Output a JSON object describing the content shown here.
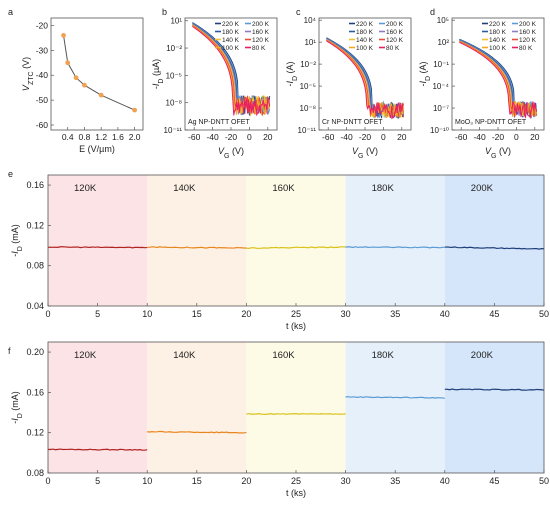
{
  "panel_letters": [
    "a",
    "b",
    "c",
    "d",
    "e",
    "f"
  ],
  "chart_data": [
    {
      "panel": "a",
      "type": "line",
      "xlabel": "E (V/µm)",
      "ylabel": "V_ZTC (V)",
      "xlim": [
        0.0,
        2.2
      ],
      "ylim": [
        -62,
        -17
      ],
      "xticks": [
        0.4,
        0.8,
        1.2,
        1.6,
        2.0
      ],
      "xtick_labels": [
        "0.4",
        "0.8",
        "1.2",
        "1.6",
        "2.0"
      ],
      "yticks": [
        -20,
        -30,
        -40,
        -50,
        -60
      ],
      "ytick_labels": [
        "-20",
        "-30",
        "-40",
        "-50",
        "-60"
      ],
      "x": [
        0.3,
        0.4,
        0.6,
        0.8,
        1.2,
        2.0
      ],
      "y": [
        -24,
        -35,
        -41,
        -44,
        -48,
        -54
      ],
      "line_color": "#555555",
      "marker_color": "#f2a052"
    },
    {
      "panel": "b",
      "type": "line",
      "annotation": "Ag NP-DNTT OFET",
      "xlabel": "V_G (V)",
      "ylabel": "-I_D (µA)",
      "xlim": [
        -70,
        30
      ],
      "ylim_exp": [
        -11,
        1.3
      ],
      "xticks": [
        -60,
        -40,
        -20,
        0,
        20
      ],
      "xtick_labels": [
        "-60",
        "-40",
        "-20",
        "0",
        "20"
      ],
      "yticks": [
        1,
        -2,
        -5,
        -8,
        -11
      ],
      "ytick_labels": [
        "10¹",
        "10⁻²",
        "10⁻⁵",
        "10⁻⁸",
        "10⁻¹¹"
      ],
      "v_on": -12,
      "noise_floor": -8.3,
      "top_value": 0.8,
      "legend": [
        "220 K",
        "200 K",
        "180 K",
        "160 K",
        "140 K",
        "120 K",
        "100 K",
        "80 K"
      ]
    },
    {
      "panel": "c",
      "type": "line",
      "annotation": "Cr NP-DNTT OFET",
      "xlabel": "V_G (V)",
      "ylabel": "-I_D (A)",
      "xlim": [
        -70,
        30
      ],
      "ylim_exp": [
        -11,
        4.3
      ],
      "xticks": [
        -60,
        -40,
        -20,
        0,
        20
      ],
      "xtick_labels": [
        "-60",
        "-40",
        "-20",
        "0",
        "20"
      ],
      "yticks": [
        4,
        1,
        -2,
        -5,
        -8,
        -11
      ],
      "ytick_labels": [
        "10⁴",
        "10¹",
        "10⁻²",
        "10⁻⁵",
        "10⁻⁸",
        "10⁻¹¹"
      ],
      "v_on": -12,
      "noise_floor": -8.3,
      "top_value": 1.6,
      "legend": [
        "220 K",
        "200 K",
        "180 K",
        "160 K",
        "140 K",
        "120 K",
        "100 K",
        "80 K"
      ]
    },
    {
      "panel": "d",
      "type": "line",
      "annotation": "MoO₃ NP-DNTT OFET",
      "xlabel": "V_G (V)",
      "ylabel": "-I_D (A)",
      "xlim": [
        -70,
        30
      ],
      "ylim_exp": [
        -10,
        5.3
      ],
      "xticks": [
        -60,
        -40,
        -20,
        0,
        20
      ],
      "xtick_labels": [
        "-60",
        "-40",
        "-20",
        "0",
        "20"
      ],
      "yticks": [
        5,
        2,
        -1,
        -4,
        -7,
        -10
      ],
      "ytick_labels": [
        "10⁵",
        "10²",
        "10⁻¹",
        "10⁻⁴",
        "10⁻⁷",
        "10⁻¹⁰"
      ],
      "v_on": -2,
      "noise_floor": -7.2,
      "top_value": 2.4,
      "legend": [
        "220 K",
        "200 K",
        "180 K",
        "160 K",
        "140 K",
        "120 K",
        "100 K",
        "80 K"
      ]
    },
    {
      "panel": "e",
      "type": "line",
      "xlabel": "t (ks)",
      "ylabel": "-I_D (mA)",
      "xlim": [
        0,
        50
      ],
      "ylim": [
        0.04,
        0.17
      ],
      "xticks": [
        0,
        5,
        10,
        15,
        20,
        25,
        30,
        35,
        40,
        45,
        50
      ],
      "xtick_labels": [
        "0",
        "5",
        "10",
        "15",
        "20",
        "25",
        "30",
        "35",
        "40",
        "45",
        "50"
      ],
      "yticks": [
        0.04,
        0.08,
        0.12,
        0.16
      ],
      "ytick_labels": [
        "0.04",
        "0.08",
        "0.12",
        "0.16"
      ],
      "segments": [
        {
          "label": "120K",
          "x": [
            0,
            10
          ],
          "y": [
            0.0985,
            0.098
          ],
          "color": "#b22222",
          "band": "#fbe3e6"
        },
        {
          "label": "140K",
          "x": [
            10,
            20
          ],
          "y": [
            0.0985,
            0.0975
          ],
          "color": "#e8861e",
          "band": "#fdf0e4"
        },
        {
          "label": "160K",
          "x": [
            20,
            30
          ],
          "y": [
            0.0975,
            0.0985
          ],
          "color": "#d9c21a",
          "band": "#fdfbe6"
        },
        {
          "label": "180K",
          "x": [
            30,
            40
          ],
          "y": [
            0.0985,
            0.098
          ],
          "color": "#5b9bd5",
          "band": "#e6f0fa"
        },
        {
          "label": "200K",
          "x": [
            40,
            50
          ],
          "y": [
            0.0985,
            0.0965
          ],
          "color": "#1f3f7a",
          "band": "#d6e6fa"
        }
      ]
    },
    {
      "panel": "f",
      "type": "line",
      "xlabel": "t (ks)",
      "ylabel": "-I_D (mA)",
      "xlim": [
        0,
        50
      ],
      "ylim": [
        0.08,
        0.21
      ],
      "xticks": [
        0,
        5,
        10,
        15,
        20,
        25,
        30,
        35,
        40,
        45,
        50
      ],
      "xtick_labels": [
        "0",
        "5",
        "10",
        "15",
        "20",
        "25",
        "30",
        "35",
        "40",
        "45",
        "50"
      ],
      "yticks": [
        0.08,
        0.12,
        0.16,
        0.2
      ],
      "ytick_labels": [
        "0.08",
        "0.12",
        "0.16",
        "0.20"
      ],
      "segments": [
        {
          "label": "120K",
          "x": [
            0,
            10
          ],
          "y": [
            0.1035,
            0.103
          ],
          "color": "#b22222",
          "band": "#fbe3e6"
        },
        {
          "label": "140K",
          "x": [
            10,
            20
          ],
          "y": [
            0.121,
            0.12
          ],
          "color": "#e8861e",
          "band": "#fdf0e4"
        },
        {
          "label": "160K",
          "x": [
            20,
            30
          ],
          "y": [
            0.1385,
            0.1385
          ],
          "color": "#d9c21a",
          "band": "#fdfbe6"
        },
        {
          "label": "180K",
          "x": [
            30,
            40
          ],
          "y": [
            0.1555,
            0.1545
          ],
          "color": "#5b9bd5",
          "band": "#e6f0fa"
        },
        {
          "label": "200K",
          "x": [
            40,
            50
          ],
          "y": [
            0.163,
            0.1625
          ],
          "color": "#1f3f7a",
          "band": "#d6e6fa"
        }
      ]
    }
  ],
  "legend_colors": [
    "#1f3f7a",
    "#5b9bd5",
    "#2c5aa0",
    "#8e7cc3",
    "#f2c12e",
    "#e74c3c",
    "#f5a623",
    "#e91e63"
  ]
}
